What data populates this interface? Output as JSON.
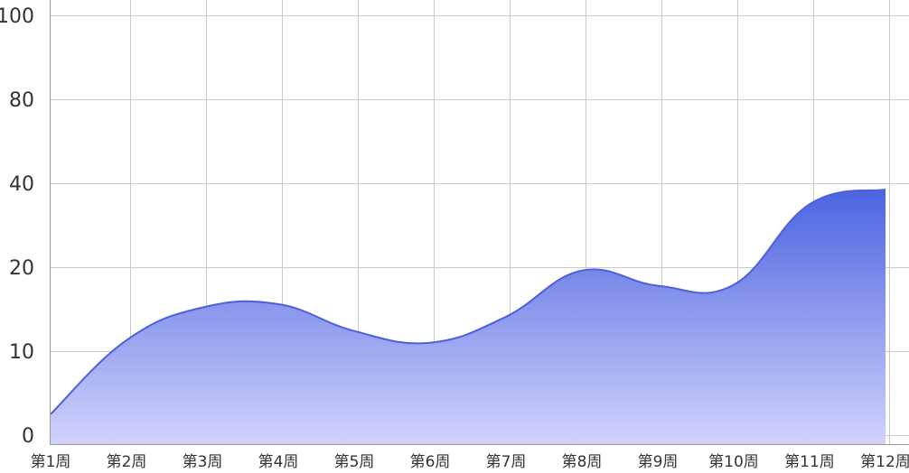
{
  "chart_data": {
    "type": "area",
    "title": "",
    "xlabel": "",
    "ylabel": "",
    "categories": [
      "第1周",
      "第2周",
      "第3周",
      "第4周",
      "第5周",
      "第6周",
      "第7周",
      "第8周",
      "第9周",
      "第10周",
      "第11周",
      "第12周"
    ],
    "series": [
      {
        "values": [
          2.5,
          11.3,
          15.2,
          15.6,
          12.4,
          11.0,
          14.1,
          19.6,
          17.8,
          17.9,
          35.0,
          38.5
        ]
      }
    ],
    "y_ticks": [
      0,
      10,
      20,
      40,
      80,
      100
    ],
    "ylim": [
      0,
      100
    ],
    "y_scale": "categorical-spaced ticks (0,10,20,40,80,100 equally spaced)",
    "grid": true,
    "legend": "none",
    "colors": {
      "line": "#4d5fde",
      "fill_top": "#4b64e0",
      "fill_bottom": "#d2d2fb",
      "grid": "#c9c9c9",
      "text": "#333333"
    }
  }
}
